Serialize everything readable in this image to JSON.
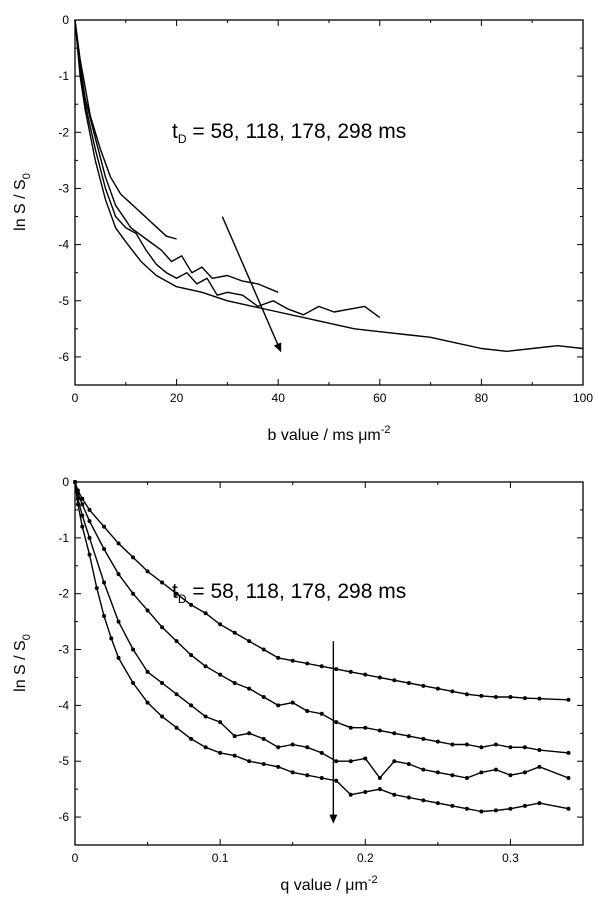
{
  "chart_data": [
    {
      "type": "line",
      "xlabel": "b value  /  ms μm",
      "xlabel_sup": "-2",
      "ylabel": "ln S / S",
      "ylabel_sub": "0",
      "xlim": [
        0,
        100
      ],
      "ylim": [
        -6.5,
        0
      ],
      "xticks": [
        0,
        20,
        40,
        60,
        80,
        100
      ],
      "yticks": [
        0,
        -1,
        -2,
        -3,
        -4,
        -5,
        -6
      ],
      "annotation": {
        "prefix": "t",
        "sub": "D",
        "text": " = 58, 118, 178, 298 ms"
      },
      "arrow": {
        "from": [
          29,
          -3.5
        ],
        "to": [
          40.5,
          -5.9
        ]
      },
      "series": [
        {
          "values": [
            [
              0,
              0
            ],
            [
              1,
              -0.7
            ],
            [
              2,
              -1.2
            ],
            [
              3,
              -1.7
            ],
            [
              5,
              -2.3
            ],
            [
              7,
              -2.8
            ],
            [
              9,
              -3.1
            ],
            [
              12,
              -3.35
            ],
            [
              15,
              -3.6
            ],
            [
              18,
              -3.85
            ],
            [
              20,
              -3.9
            ]
          ]
        },
        {
          "values": [
            [
              0,
              0
            ],
            [
              1,
              -0.8
            ],
            [
              2,
              -1.4
            ],
            [
              4,
              -2.1
            ],
            [
              6,
              -2.8
            ],
            [
              8,
              -3.3
            ],
            [
              11,
              -3.7
            ],
            [
              14,
              -3.9
            ],
            [
              17,
              -4.1
            ],
            [
              19,
              -4.3
            ],
            [
              21,
              -4.2
            ],
            [
              23,
              -4.5
            ],
            [
              25,
              -4.4
            ],
            [
              27,
              -4.6
            ],
            [
              30,
              -4.55
            ],
            [
              33,
              -4.65
            ],
            [
              36,
              -4.7
            ],
            [
              40,
              -4.85
            ]
          ]
        },
        {
          "values": [
            [
              0,
              0
            ],
            [
              1,
              -0.9
            ],
            [
              2,
              -1.5
            ],
            [
              4,
              -2.3
            ],
            [
              6,
              -3.0
            ],
            [
              8,
              -3.5
            ],
            [
              10,
              -3.7
            ],
            [
              12,
              -3.8
            ],
            [
              14,
              -4.1
            ],
            [
              16,
              -4.35
            ],
            [
              18,
              -4.5
            ],
            [
              20,
              -4.6
            ],
            [
              22,
              -4.5
            ],
            [
              24,
              -4.7
            ],
            [
              26,
              -4.6
            ],
            [
              28,
              -4.9
            ],
            [
              30,
              -4.85
            ],
            [
              33,
              -4.9
            ],
            [
              36,
              -5.1
            ],
            [
              39,
              -5.0
            ],
            [
              42,
              -5.15
            ],
            [
              45,
              -5.25
            ],
            [
              48,
              -5.1
            ],
            [
              51,
              -5.2
            ],
            [
              54,
              -5.15
            ],
            [
              57,
              -5.1
            ],
            [
              60,
              -5.3
            ]
          ]
        },
        {
          "values": [
            [
              0,
              0
            ],
            [
              1,
              -1.0
            ],
            [
              2,
              -1.6
            ],
            [
              4,
              -2.5
            ],
            [
              6,
              -3.2
            ],
            [
              8,
              -3.7
            ],
            [
              10,
              -3.95
            ],
            [
              13,
              -4.3
            ],
            [
              16,
              -4.55
            ],
            [
              20,
              -4.75
            ],
            [
              25,
              -4.85
            ],
            [
              30,
              -5.0
            ],
            [
              35,
              -5.1
            ],
            [
              40,
              -5.2
            ],
            [
              45,
              -5.3
            ],
            [
              50,
              -5.4
            ],
            [
              55,
              -5.5
            ],
            [
              60,
              -5.55
            ],
            [
              65,
              -5.6
            ],
            [
              70,
              -5.65
            ],
            [
              75,
              -5.75
            ],
            [
              80,
              -5.85
            ],
            [
              85,
              -5.9
            ],
            [
              90,
              -5.85
            ],
            [
              95,
              -5.8
            ],
            [
              100,
              -5.85
            ]
          ]
        }
      ]
    },
    {
      "type": "line",
      "xlabel": "q value  /  μm",
      "xlabel_sup": "-2",
      "ylabel": "ln S / S",
      "ylabel_sub": "0",
      "xlim": [
        0,
        0.35
      ],
      "ylim": [
        -6.5,
        0
      ],
      "xticks": [
        0,
        0.1,
        0.2,
        0.3
      ],
      "xticklabels": [
        "0",
        "0.1",
        "0.2",
        "0.3"
      ],
      "yticks": [
        0,
        -1,
        -2,
        -3,
        -4,
        -5,
        -6
      ],
      "annotation": {
        "prefix": "t",
        "sub": "D",
        "text": " = 58, 118, 178, 298 ms"
      },
      "arrow": {
        "from": [
          0.178,
          -2.85
        ],
        "to": [
          0.178,
          -6.1
        ]
      },
      "series": [
        {
          "values": [
            [
              0,
              0
            ],
            [
              0.002,
              -0.15
            ],
            [
              0.005,
              -0.3
            ],
            [
              0.01,
              -0.5
            ],
            [
              0.02,
              -0.8
            ],
            [
              0.03,
              -1.1
            ],
            [
              0.04,
              -1.35
            ],
            [
              0.05,
              -1.6
            ],
            [
              0.06,
              -1.8
            ],
            [
              0.07,
              -2.0
            ],
            [
              0.08,
              -2.2
            ],
            [
              0.09,
              -2.35
            ],
            [
              0.1,
              -2.55
            ],
            [
              0.11,
              -2.7
            ],
            [
              0.12,
              -2.85
            ],
            [
              0.13,
              -3.0
            ],
            [
              0.14,
              -3.15
            ],
            [
              0.15,
              -3.2
            ],
            [
              0.16,
              -3.25
            ],
            [
              0.17,
              -3.3
            ],
            [
              0.18,
              -3.35
            ],
            [
              0.19,
              -3.4
            ],
            [
              0.2,
              -3.45
            ],
            [
              0.21,
              -3.5
            ],
            [
              0.22,
              -3.55
            ],
            [
              0.23,
              -3.6
            ],
            [
              0.24,
              -3.65
            ],
            [
              0.25,
              -3.7
            ],
            [
              0.26,
              -3.75
            ],
            [
              0.27,
              -3.8
            ],
            [
              0.28,
              -3.83
            ],
            [
              0.29,
              -3.85
            ],
            [
              0.3,
              -3.85
            ],
            [
              0.31,
              -3.87
            ],
            [
              0.32,
              -3.88
            ],
            [
              0.34,
              -3.9
            ]
          ]
        },
        {
          "values": [
            [
              0,
              0
            ],
            [
              0.002,
              -0.2
            ],
            [
              0.005,
              -0.4
            ],
            [
              0.01,
              -0.7
            ],
            [
              0.02,
              -1.2
            ],
            [
              0.03,
              -1.65
            ],
            [
              0.04,
              -2.0
            ],
            [
              0.05,
              -2.3
            ],
            [
              0.06,
              -2.6
            ],
            [
              0.07,
              -2.85
            ],
            [
              0.08,
              -3.1
            ],
            [
              0.09,
              -3.3
            ],
            [
              0.1,
              -3.45
            ],
            [
              0.11,
              -3.6
            ],
            [
              0.12,
              -3.7
            ],
            [
              0.13,
              -3.85
            ],
            [
              0.14,
              -4.0
            ],
            [
              0.15,
              -3.95
            ],
            [
              0.16,
              -4.1
            ],
            [
              0.17,
              -4.15
            ],
            [
              0.18,
              -4.3
            ],
            [
              0.19,
              -4.4
            ],
            [
              0.2,
              -4.4
            ],
            [
              0.21,
              -4.45
            ],
            [
              0.22,
              -4.5
            ],
            [
              0.23,
              -4.55
            ],
            [
              0.24,
              -4.6
            ],
            [
              0.25,
              -4.65
            ],
            [
              0.26,
              -4.7
            ],
            [
              0.27,
              -4.7
            ],
            [
              0.28,
              -4.75
            ],
            [
              0.29,
              -4.7
            ],
            [
              0.3,
              -4.75
            ],
            [
              0.31,
              -4.75
            ],
            [
              0.32,
              -4.8
            ],
            [
              0.34,
              -4.85
            ]
          ]
        },
        {
          "values": [
            [
              0,
              0
            ],
            [
              0.002,
              -0.3
            ],
            [
              0.005,
              -0.6
            ],
            [
              0.01,
              -1.0
            ],
            [
              0.02,
              -1.8
            ],
            [
              0.03,
              -2.5
            ],
            [
              0.04,
              -3.0
            ],
            [
              0.05,
              -3.4
            ],
            [
              0.06,
              -3.6
            ],
            [
              0.07,
              -3.8
            ],
            [
              0.08,
              -4.0
            ],
            [
              0.09,
              -4.2
            ],
            [
              0.1,
              -4.3
            ],
            [
              0.11,
              -4.55
            ],
            [
              0.12,
              -4.5
            ],
            [
              0.13,
              -4.6
            ],
            [
              0.14,
              -4.75
            ],
            [
              0.15,
              -4.7
            ],
            [
              0.16,
              -4.75
            ],
            [
              0.17,
              -4.85
            ],
            [
              0.18,
              -5.0
            ],
            [
              0.19,
              -5.0
            ],
            [
              0.2,
              -4.95
            ],
            [
              0.21,
              -5.3
            ],
            [
              0.22,
              -5.0
            ],
            [
              0.23,
              -5.05
            ],
            [
              0.24,
              -5.15
            ],
            [
              0.25,
              -5.2
            ],
            [
              0.26,
              -5.25
            ],
            [
              0.27,
              -5.3
            ],
            [
              0.28,
              -5.2
            ],
            [
              0.29,
              -5.15
            ],
            [
              0.3,
              -5.25
            ],
            [
              0.31,
              -5.2
            ],
            [
              0.32,
              -5.1
            ],
            [
              0.34,
              -5.3
            ]
          ]
        },
        {
          "values": [
            [
              0,
              0
            ],
            [
              0.002,
              -0.4
            ],
            [
              0.005,
              -0.8
            ],
            [
              0.01,
              -1.3
            ],
            [
              0.015,
              -1.9
            ],
            [
              0.02,
              -2.4
            ],
            [
              0.025,
              -2.8
            ],
            [
              0.03,
              -3.15
            ],
            [
              0.04,
              -3.6
            ],
            [
              0.05,
              -3.95
            ],
            [
              0.06,
              -4.2
            ],
            [
              0.07,
              -4.4
            ],
            [
              0.08,
              -4.6
            ],
            [
              0.09,
              -4.75
            ],
            [
              0.1,
              -4.85
            ],
            [
              0.11,
              -4.9
            ],
            [
              0.12,
              -5.0
            ],
            [
              0.13,
              -5.05
            ],
            [
              0.14,
              -5.1
            ],
            [
              0.15,
              -5.2
            ],
            [
              0.16,
              -5.25
            ],
            [
              0.17,
              -5.3
            ],
            [
              0.18,
              -5.35
            ],
            [
              0.19,
              -5.6
            ],
            [
              0.2,
              -5.55
            ],
            [
              0.21,
              -5.5
            ],
            [
              0.22,
              -5.6
            ],
            [
              0.23,
              -5.65
            ],
            [
              0.24,
              -5.7
            ],
            [
              0.25,
              -5.75
            ],
            [
              0.26,
              -5.8
            ],
            [
              0.27,
              -5.85
            ],
            [
              0.28,
              -5.9
            ],
            [
              0.29,
              -5.88
            ],
            [
              0.3,
              -5.85
            ],
            [
              0.31,
              -5.8
            ],
            [
              0.32,
              -5.75
            ],
            [
              0.34,
              -5.85
            ]
          ]
        }
      ]
    }
  ]
}
